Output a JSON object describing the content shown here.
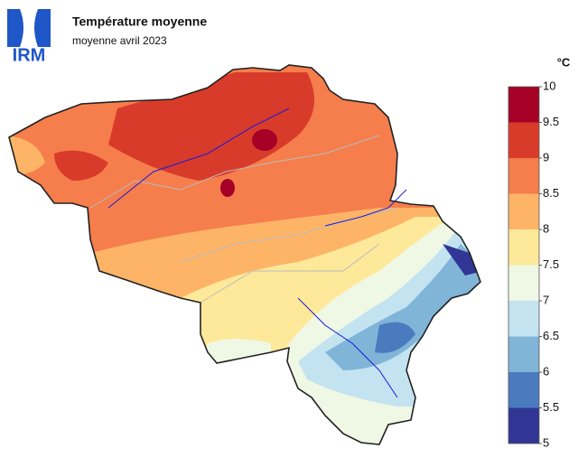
{
  "header": {
    "logo": "IRM",
    "title": "Température moyenne",
    "subtitle": "moyenne avril 2023"
  },
  "legend": {
    "unit": "°C",
    "ticks": [
      5,
      5.5,
      6,
      6.5,
      7,
      7.5,
      8,
      8.5,
      9,
      9.5,
      10
    ],
    "colors": [
      "#313695",
      "#4a7bbf",
      "#80b5d8",
      "#c4e3f1",
      "#eff8e4",
      "#fee99a",
      "#fdb467",
      "#f57e4c",
      "#d93b2b",
      "#a50026"
    ]
  }
}
